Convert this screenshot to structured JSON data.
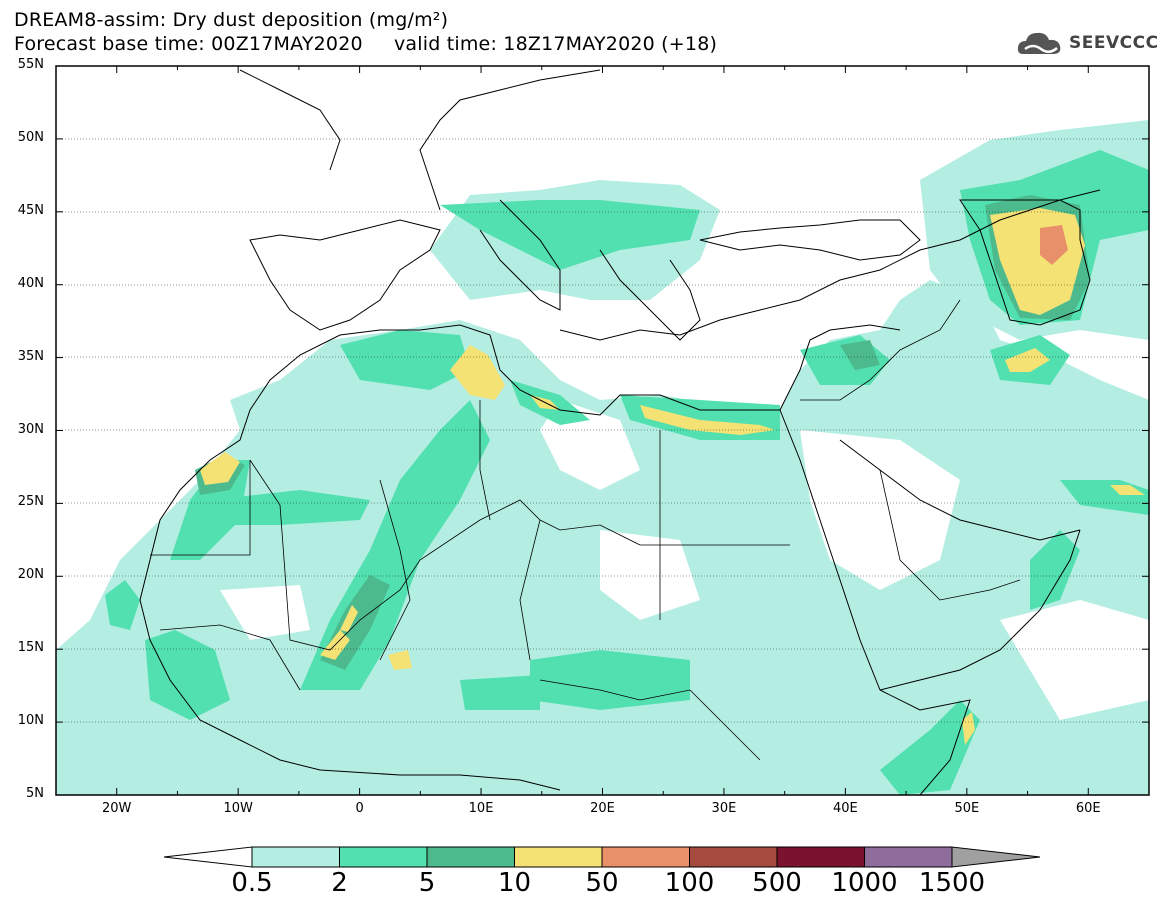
{
  "header": {
    "line1": "DREAM8-assim: Dry dust deposition (mg/m²)",
    "line2": "Forecast base time: 00Z17MAY2020     valid time: 18Z17MAY2020 (+18)"
  },
  "logo": {
    "text": "SEEVCCC"
  },
  "map": {
    "lat_labels": [
      "55N",
      "50N",
      "45N",
      "40N",
      "35N",
      "30N",
      "25N",
      "20N",
      "15N",
      "10N",
      "5N"
    ],
    "lon_labels": [
      "20W",
      "10W",
      "0",
      "10E",
      "20E",
      "30E",
      "40E",
      "50E",
      "60E"
    ],
    "lon_range": [
      -25,
      65
    ],
    "lat_range": [
      5,
      55
    ]
  },
  "legend": {
    "labels": [
      "0.5",
      "2",
      "5",
      "10",
      "50",
      "100",
      "500",
      "1000",
      "1500"
    ],
    "colors": [
      "#b4eee2",
      "#52e0b0",
      "#4dba8e",
      "#f5e275",
      "#e8906a",
      "#a54a3e",
      "#7a1230",
      "#8e6c9c"
    ],
    "under_color": "#ffffff",
    "over_color": "#a0a0a0"
  }
}
